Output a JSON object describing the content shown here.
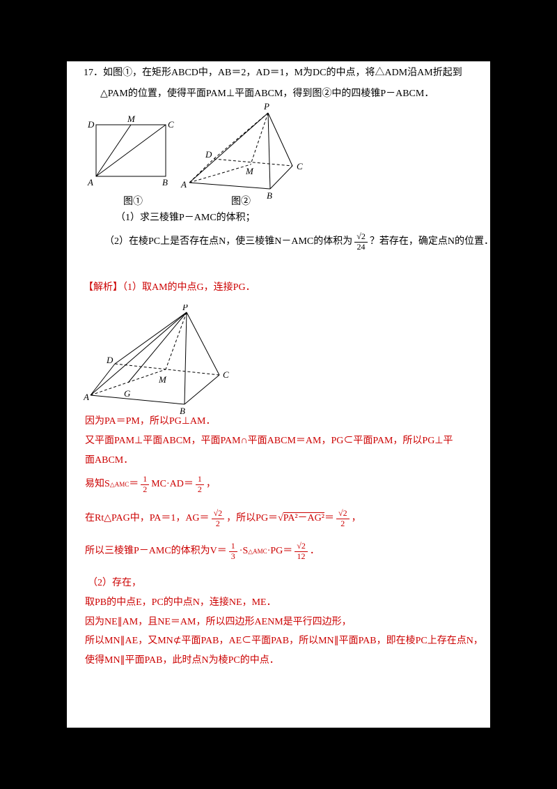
{
  "colors": {
    "canvas_bg": "#000000",
    "page_bg": "#ffffff",
    "problem_text": "#000000",
    "solution_red": "#cc0000"
  },
  "problem": {
    "lines": [
      {
        "segments": [
          {
            "t": "17．如图①，在矩形ABCD中，AB＝2，AD＝1，M为DC的中点，将△ADM沿AM折起到"
          }
        ]
      },
      {
        "segments": [
          {
            "t": "△PAM的位置，使得平面PAM⊥平面ABCM，得到图②中的四棱锥P－ABCM．"
          }
        ]
      },
      {
        "segments": [
          {
            "t": "（1）求三棱锥P－AMC的体积；"
          }
        ]
      },
      {
        "segments": [
          {
            "t": "（2）在棱PC上是否存在点N，使三棱锥N－AMC的体积为"
          },
          {
            "frac": {
              "n": "√2",
              "d": "24"
            }
          },
          {
            "t": "？若存在，确定点N的位置．"
          }
        ]
      }
    ]
  },
  "figures": {
    "fig1": {
      "caption": "图①",
      "labels": {
        "A": "A",
        "B": "B",
        "C": "C",
        "D": "D",
        "M": "M"
      }
    },
    "fig2": {
      "caption": "图②",
      "labels": {
        "A": "A",
        "B": "B",
        "C": "C",
        "D": "D",
        "M": "M",
        "P": "P"
      }
    },
    "fig3": {
      "labels": {
        "A": "A",
        "B": "B",
        "C": "C",
        "D": "D",
        "M": "M",
        "P": "P",
        "G": "G"
      }
    }
  },
  "solution": {
    "lines": [
      {
        "segments": [
          {
            "t": "【解析】（1）取AM的中点G，连接PG．"
          }
        ]
      },
      {
        "segments": [
          {
            "t": "因为PA＝PM，所以PG⊥AM．"
          }
        ]
      },
      {
        "segments": [
          {
            "t": "又平面PAM⊥平面ABCM，平面PAM∩平面ABCM＝AM，PG⊂平面PAM，所以PG⊥平"
          }
        ]
      },
      {
        "segments": [
          {
            "t": "面ABCM．"
          }
        ]
      },
      {
        "segments": [
          {
            "t": "易知S"
          },
          {
            "sub": "△AMC"
          },
          {
            "t": "＝"
          },
          {
            "frac": {
              "n": "1",
              "d": "2"
            }
          },
          {
            "t": "MC·AD＝"
          },
          {
            "frac": {
              "n": "1",
              "d": "2"
            }
          },
          {
            "t": "，"
          }
        ]
      },
      {
        "segments": [
          {
            "t": "在Rt△PAG中，PA＝1，AG＝"
          },
          {
            "frac": {
              "n": "√2",
              "d": "2"
            }
          },
          {
            "t": "，所以PG＝"
          },
          {
            "sqrt": "PA²－AG²"
          },
          {
            "t": "＝"
          },
          {
            "frac": {
              "n": "√2",
              "d": "2"
            }
          },
          {
            "t": "，"
          }
        ]
      },
      {
        "segments": [
          {
            "t": "所以三棱锥P－AMC的体积为V＝"
          },
          {
            "frac": {
              "n": "1",
              "d": "3"
            }
          },
          {
            "t": "·S"
          },
          {
            "sub": "△AMC"
          },
          {
            "t": "·PG＝"
          },
          {
            "frac": {
              "n": "√2",
              "d": "12"
            }
          },
          {
            "t": "．"
          }
        ]
      },
      {
        "segments": [
          {
            "t": "（2）存在，"
          }
        ]
      },
      {
        "segments": [
          {
            "t": "取PB的中点E，PC的中点N，连接NE，ME．"
          }
        ]
      },
      {
        "segments": [
          {
            "t": "因为NE∥AM，且NE＝AM，所以四边形AENM是平行四边形，"
          }
        ]
      },
      {
        "segments": [
          {
            "t": "所以MN∥AE，又MN⊄平面PAB，AE⊂平面PAB，所以MN∥平面PAB，即在棱PC上存在点N，"
          }
        ]
      },
      {
        "segments": [
          {
            "t": "使得MN∥平面PAB，此时点N为棱PC的中点．"
          }
        ]
      }
    ]
  }
}
